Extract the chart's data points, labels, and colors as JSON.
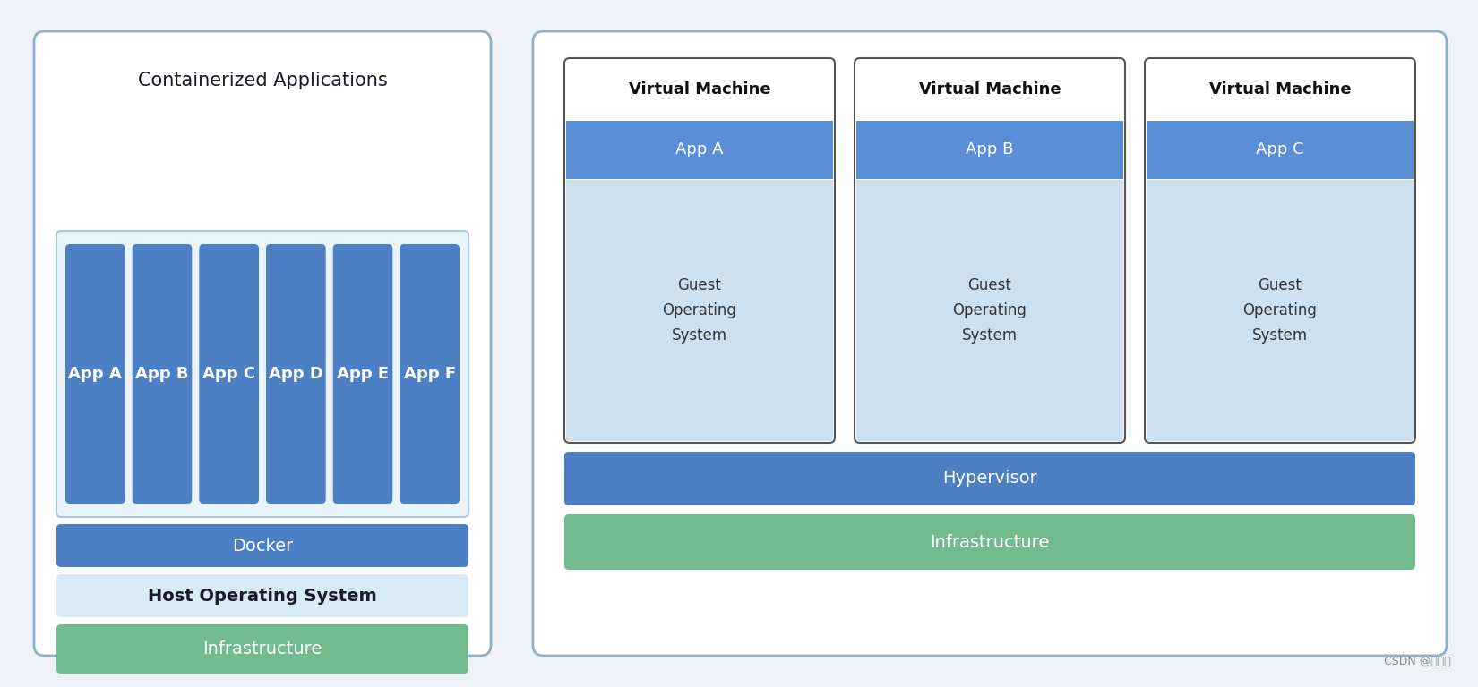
{
  "bg_color": "#eef1f5",
  "panel_bg": "#ffffff",
  "panel_border": "#8ab0d0",
  "title_color": "#1a1a2e",
  "blue_dark": "#4d7fc4",
  "blue_medium": "#5a8fd8",
  "blue_light": "#cce0f0",
  "green": "#72bb8e",
  "left_title": "Containerized Applications",
  "left_apps": [
    "App A",
    "App B",
    "App C",
    "App D",
    "App E",
    "App F"
  ],
  "left_layers": [
    "Docker",
    "Host Operating System",
    "Infrastructure"
  ],
  "left_layer_colors": [
    "#4d7fc4",
    "#d8eaf6",
    "#72bb8e"
  ],
  "left_layer_text_colors": [
    "#ffffff",
    "#1a1a2e",
    "#ffffff"
  ],
  "left_layer_bold": [
    false,
    true,
    false
  ],
  "right_apps": [
    "App A",
    "App B",
    "App C"
  ],
  "right_layers": [
    "Hypervisor",
    "Infrastructure"
  ],
  "right_layer_colors": [
    "#4d7fc4",
    "#72bb8e"
  ],
  "right_layer_text_colors": [
    "#ffffff",
    "#ffffff"
  ],
  "vm_app_color": "#5a8fd8",
  "vm_guest_color": "#cce0f0",
  "watermark": "CSDN @小哈里"
}
